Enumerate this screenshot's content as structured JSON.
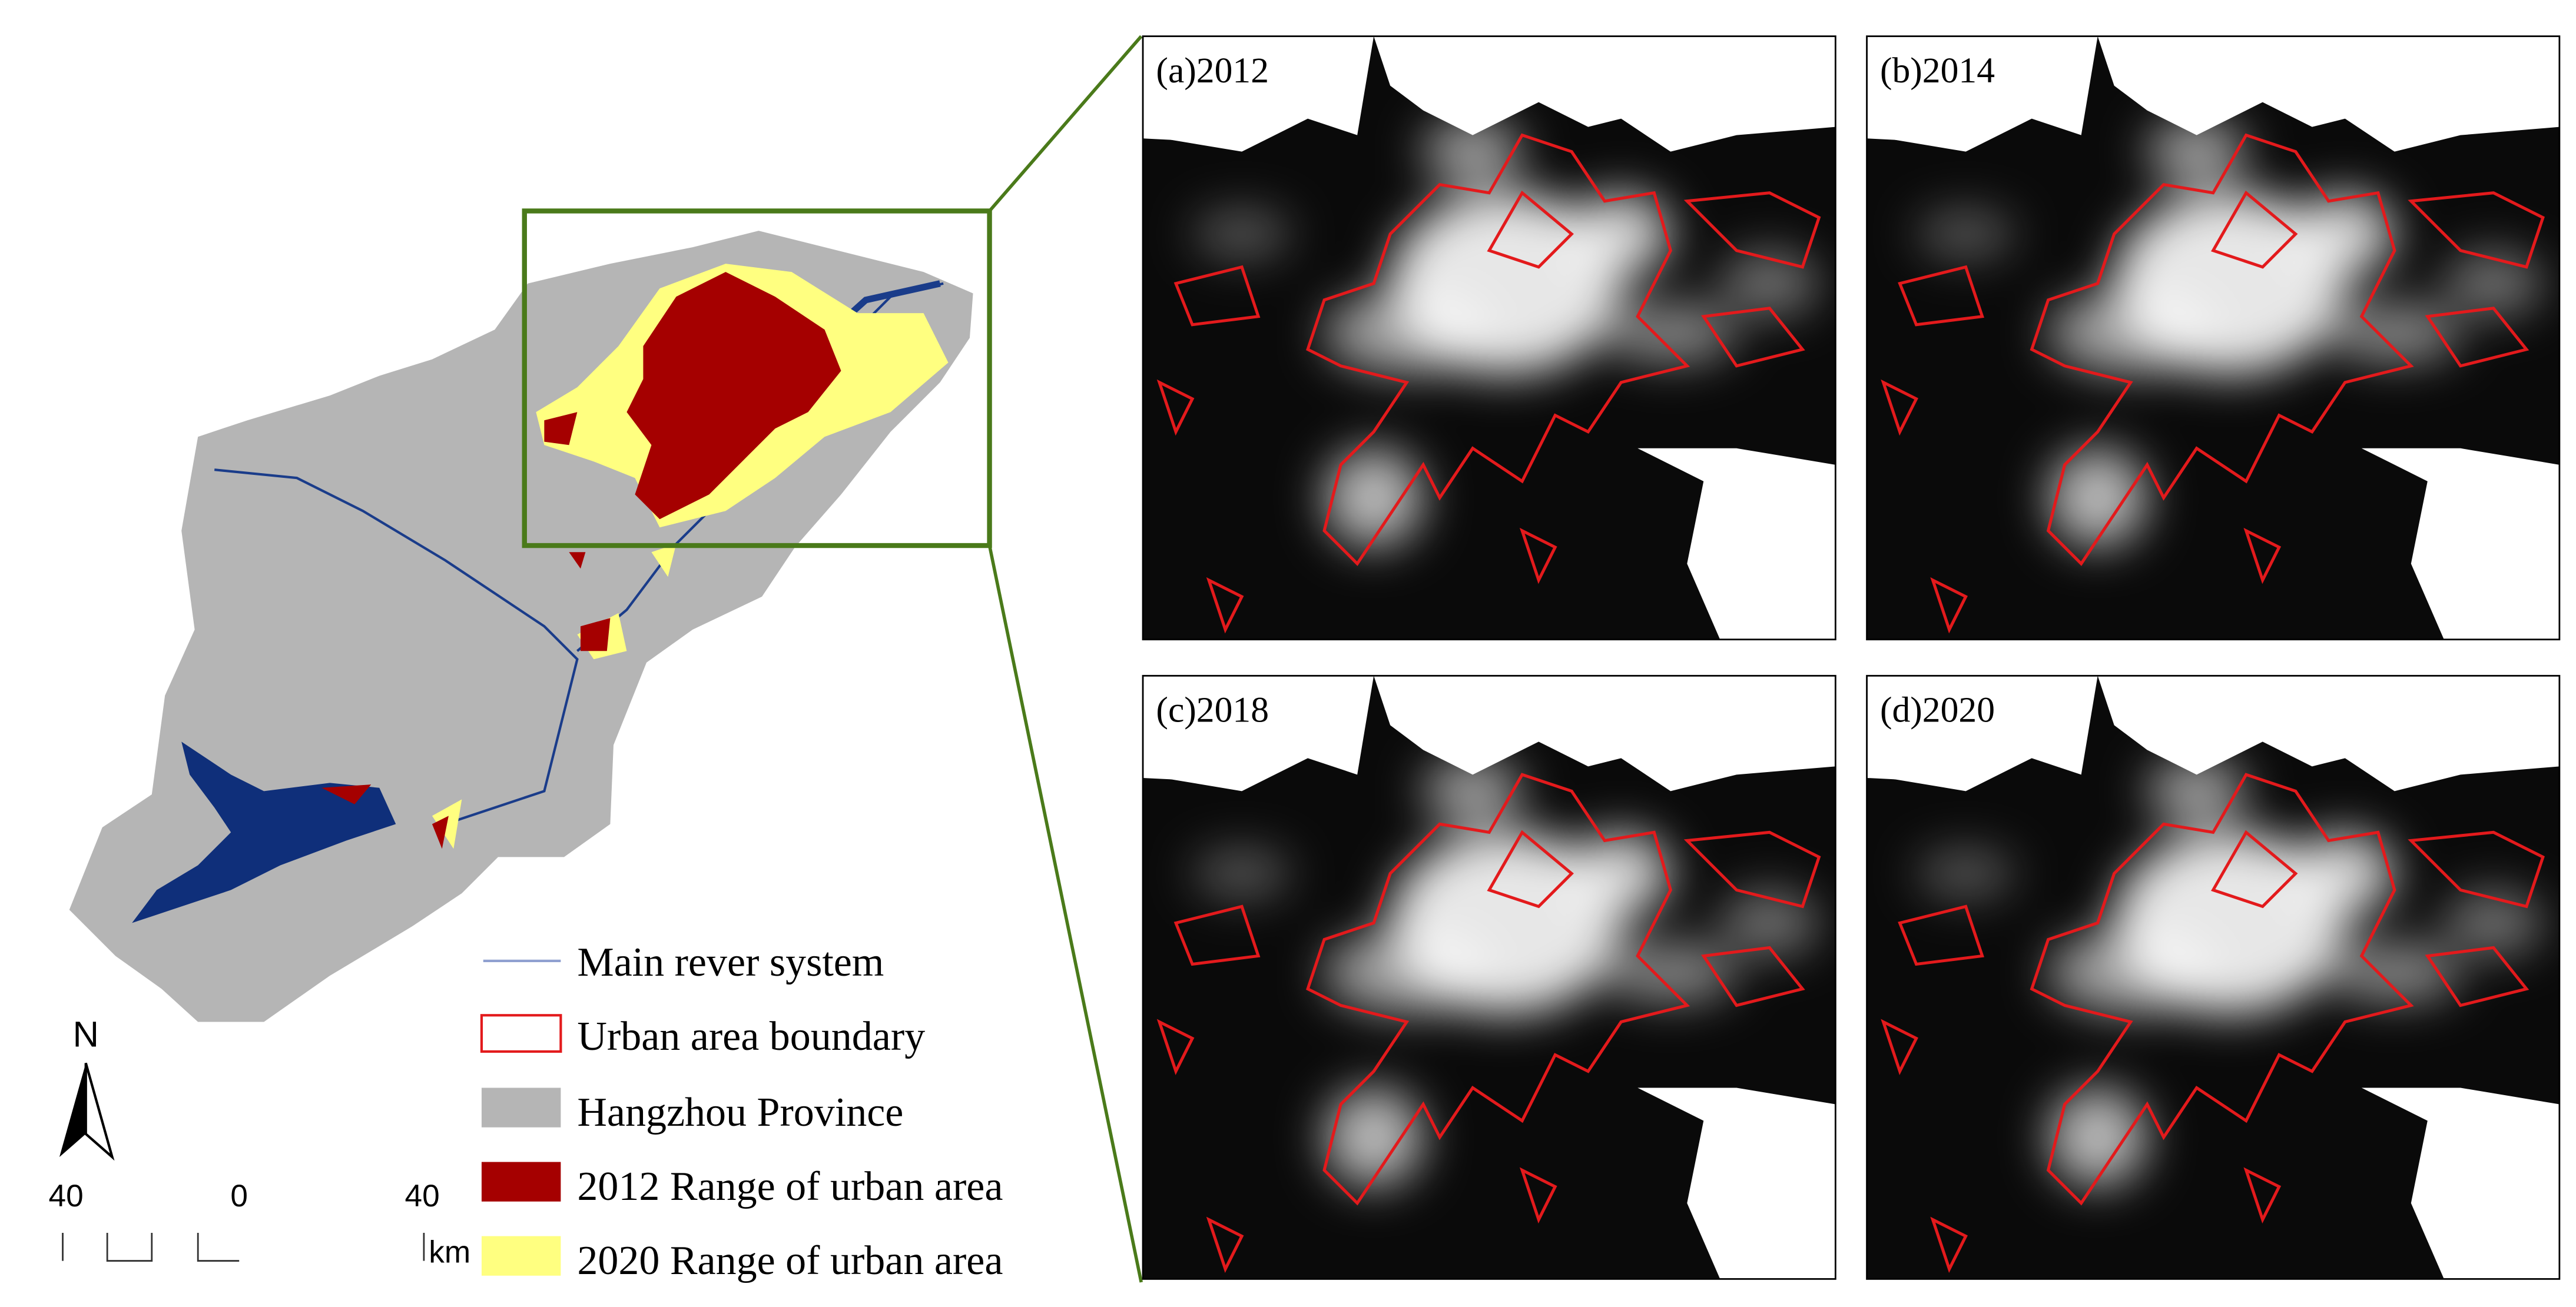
{
  "panels": [
    "(a)2012",
    "(b)2014",
    "(c)2018",
    "(d)2020"
  ],
  "legend": [
    "Main rever system",
    "Urban area boundary",
    "Hangzhou Province",
    "2012 Range of urban area",
    "2020 Range of urban area"
  ],
  "north": "N",
  "scale": {
    "labels": [
      "40",
      "0",
      "40"
    ],
    "unit": "km"
  }
}
